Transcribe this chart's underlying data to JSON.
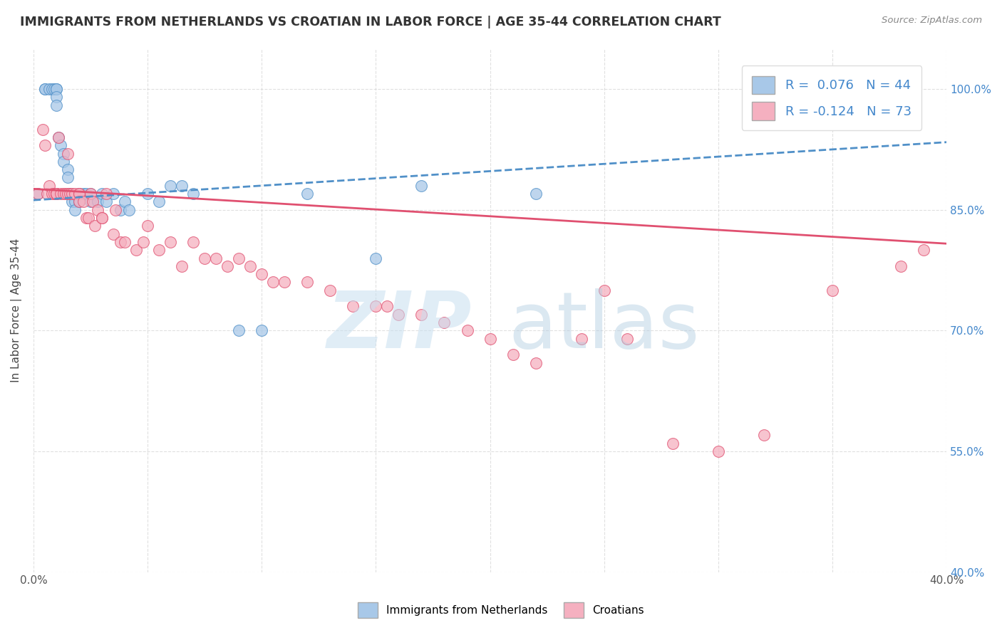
{
  "title": "IMMIGRANTS FROM NETHERLANDS VS CROATIAN IN LABOR FORCE | AGE 35-44 CORRELATION CHART",
  "source": "Source: ZipAtlas.com",
  "ylabel": "In Labor Force | Age 35-44",
  "xlim": [
    0.0,
    0.4
  ],
  "ylim": [
    0.4,
    1.05
  ],
  "ytick_labels": [
    "100.0%",
    "85.0%",
    "70.0%",
    "55.0%",
    "40.0%"
  ],
  "ytick_values": [
    1.0,
    0.85,
    0.7,
    0.55,
    0.4
  ],
  "xtick_values": [
    0.0,
    0.05,
    0.1,
    0.15,
    0.2,
    0.25,
    0.3,
    0.35,
    0.4
  ],
  "legend_labels": [
    "Immigrants from Netherlands",
    "Croatians"
  ],
  "R_netherlands": 0.076,
  "N_netherlands": 44,
  "R_croatians": -0.124,
  "N_croatians": 73,
  "netherlands_color": "#a8c8e8",
  "croatians_color": "#f5b0c0",
  "netherlands_line_color": "#5090c8",
  "croatians_line_color": "#e05070",
  "title_color": "#333333",
  "source_color": "#888888",
  "nl_x": [
    0.002,
    0.005,
    0.005,
    0.007,
    0.008,
    0.009,
    0.01,
    0.01,
    0.01,
    0.01,
    0.011,
    0.012,
    0.013,
    0.013,
    0.015,
    0.015,
    0.016,
    0.017,
    0.018,
    0.018,
    0.02,
    0.02,
    0.022,
    0.023,
    0.025,
    0.025,
    0.028,
    0.03,
    0.032,
    0.035,
    0.038,
    0.04,
    0.042,
    0.05,
    0.055,
    0.06,
    0.065,
    0.07,
    0.09,
    0.1,
    0.12,
    0.15,
    0.17,
    0.22
  ],
  "nl_y": [
    0.87,
    1.0,
    1.0,
    1.0,
    1.0,
    1.0,
    1.0,
    1.0,
    0.99,
    0.98,
    0.94,
    0.93,
    0.92,
    0.91,
    0.9,
    0.89,
    0.87,
    0.86,
    0.86,
    0.85,
    0.87,
    0.86,
    0.87,
    0.87,
    0.87,
    0.86,
    0.86,
    0.87,
    0.86,
    0.87,
    0.85,
    0.86,
    0.85,
    0.87,
    0.86,
    0.88,
    0.88,
    0.87,
    0.7,
    0.7,
    0.87,
    0.79,
    0.88,
    0.87
  ],
  "cr_x": [
    0.002,
    0.004,
    0.005,
    0.006,
    0.007,
    0.008,
    0.009,
    0.01,
    0.01,
    0.01,
    0.01,
    0.011,
    0.012,
    0.013,
    0.014,
    0.015,
    0.015,
    0.016,
    0.017,
    0.018,
    0.02,
    0.02,
    0.02,
    0.022,
    0.023,
    0.024,
    0.025,
    0.026,
    0.027,
    0.028,
    0.03,
    0.03,
    0.032,
    0.035,
    0.036,
    0.038,
    0.04,
    0.045,
    0.048,
    0.05,
    0.055,
    0.06,
    0.065,
    0.07,
    0.075,
    0.08,
    0.085,
    0.09,
    0.095,
    0.1,
    0.105,
    0.11,
    0.12,
    0.13,
    0.14,
    0.15,
    0.155,
    0.16,
    0.17,
    0.18,
    0.19,
    0.2,
    0.21,
    0.22,
    0.24,
    0.25,
    0.26,
    0.28,
    0.3,
    0.32,
    0.35,
    0.38,
    0.39
  ],
  "cr_y": [
    0.87,
    0.95,
    0.93,
    0.87,
    0.88,
    0.87,
    0.87,
    0.87,
    0.87,
    0.87,
    0.87,
    0.94,
    0.87,
    0.87,
    0.87,
    0.92,
    0.87,
    0.87,
    0.87,
    0.87,
    0.87,
    0.87,
    0.86,
    0.86,
    0.84,
    0.84,
    0.87,
    0.86,
    0.83,
    0.85,
    0.84,
    0.84,
    0.87,
    0.82,
    0.85,
    0.81,
    0.81,
    0.8,
    0.81,
    0.83,
    0.8,
    0.81,
    0.78,
    0.81,
    0.79,
    0.79,
    0.78,
    0.79,
    0.78,
    0.77,
    0.76,
    0.76,
    0.76,
    0.75,
    0.73,
    0.73,
    0.73,
    0.72,
    0.72,
    0.71,
    0.7,
    0.69,
    0.67,
    0.66,
    0.69,
    0.75,
    0.69,
    0.56,
    0.55,
    0.57,
    0.75,
    0.78,
    0.8
  ],
  "nl_trend_x": [
    0.0,
    0.4
  ],
  "nl_trend_y": [
    0.862,
    0.934
  ],
  "cr_trend_x": [
    0.0,
    0.4
  ],
  "cr_trend_y": [
    0.876,
    0.808
  ]
}
